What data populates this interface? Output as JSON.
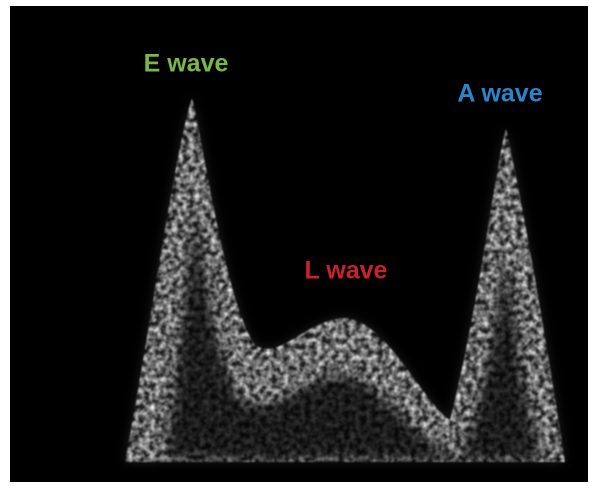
{
  "image": {
    "labels": [
      "E wave",
      "L wave",
      "A wave"
    ]
  }
}
